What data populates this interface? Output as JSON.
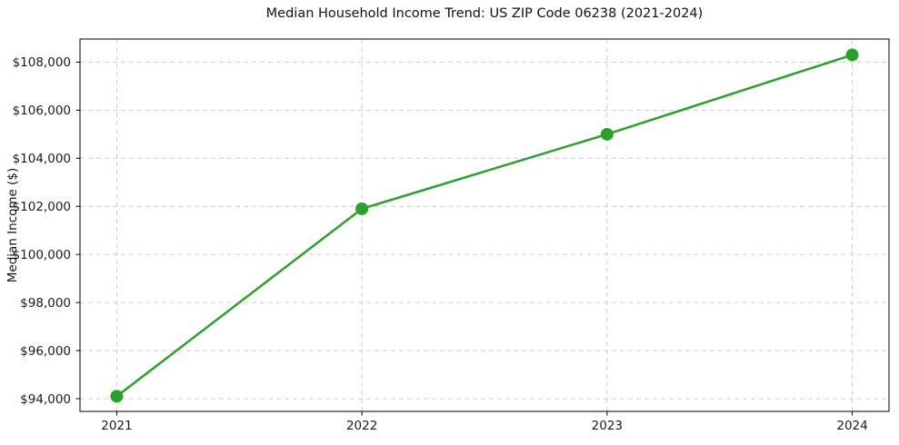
{
  "chart_data": {
    "type": "line",
    "title": "Median Household Income Trend: US ZIP Code 06238 (2021-2024)",
    "xlabel": "",
    "ylabel": "Median Income ($)",
    "x": [
      2021,
      2022,
      2023,
      2024
    ],
    "values": [
      94100,
      101900,
      105000,
      108300
    ],
    "x_tick_labels": [
      "2021",
      "2022",
      "2023",
      "2024"
    ],
    "y_ticks": [
      94000,
      96000,
      98000,
      100000,
      102000,
      104000,
      106000,
      108000
    ],
    "y_tick_labels": [
      "$94,000",
      "$96,000",
      "$98,000",
      "$100,000",
      "$102,000",
      "$104,000",
      "$106,000",
      "$108,000"
    ],
    "xlim": [
      2020.85,
      2024.15
    ],
    "ylim": [
      93470,
      108960
    ],
    "grid": true,
    "grid_linestyle": "dashed",
    "legend": "none",
    "colors": {
      "line": "#2ca02c",
      "marker": "#2ca02c",
      "grid": "#cdcdcd",
      "spine": "#000000",
      "tick_text": "#1a1a1a",
      "background": "#ffffff"
    }
  }
}
